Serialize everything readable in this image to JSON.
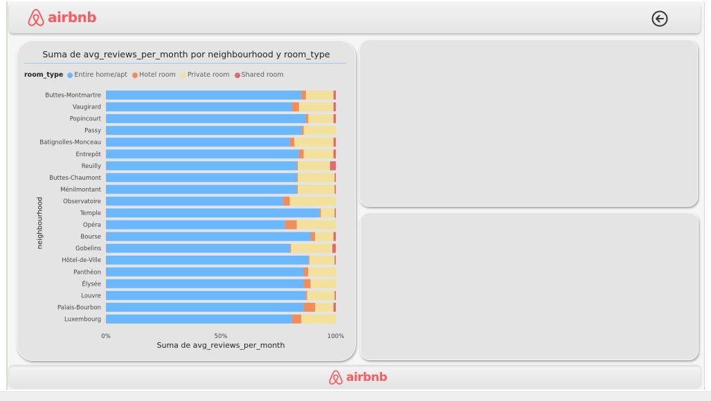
{
  "header": {
    "brand": "airbnb",
    "back_icon": "circle-arrow-left-icon"
  },
  "footer": {
    "brand": "airbnb"
  },
  "colors": {
    "brand": "#ff5a5f",
    "entire": "#6cb8ff",
    "hotel": "#f08e5b",
    "private": "#f2e09b",
    "shared": "#dd6b6f"
  },
  "chart_data": {
    "type": "bar",
    "orientation": "horizontal",
    "stacked": "100%",
    "title": "Suma de avg_reviews_per_month por neighbourhood y room_type",
    "xlabel": "Suma de avg_reviews_per_month",
    "ylabel": "neighbourhood",
    "legend_title": "room_type",
    "legend_position": "top-left",
    "x_ticks": [
      "0%",
      "50%",
      "100%"
    ],
    "xlim": [
      0,
      100
    ],
    "categories": [
      "Buttes-Montmartre",
      "Vaugirard",
      "Popincourt",
      "Passy",
      "Batignolles-Monceau",
      "Entrepôt",
      "Reuilly",
      "Buttes-Chaumont",
      "Ménilmontant",
      "Observatoire",
      "Temple",
      "Opéra",
      "Bourse",
      "Gobelins",
      "Hôtel-de-Ville",
      "Panthéon",
      "Élysée",
      "Louvre",
      "Palais-Bourbon",
      "Luxembourg"
    ],
    "series": [
      {
        "name": "Entire home/apt",
        "values": [
          85,
          81,
          87,
          85,
          80,
          84,
          83,
          83,
          83,
          77,
          93,
          78,
          89,
          80,
          88,
          86,
          86,
          87,
          86,
          81
        ]
      },
      {
        "name": "Hotel room",
        "values": [
          2,
          3,
          1,
          1,
          2,
          2,
          0.5,
          0.5,
          0.5,
          3,
          0.5,
          5,
          2,
          0.5,
          0.5,
          2,
          3,
          0.5,
          5,
          4
        ]
      },
      {
        "name": "Private room",
        "values": [
          12,
          15,
          11,
          14,
          17,
          13,
          14,
          16,
          16,
          20,
          6,
          17,
          8,
          18,
          11,
          12,
          11,
          12,
          8,
          15
        ]
      },
      {
        "name": "Shared room",
        "values": [
          1,
          1,
          1,
          0,
          1,
          1,
          2.5,
          0.5,
          0.5,
          0,
          0.5,
          0,
          1,
          1.5,
          0.5,
          0,
          0,
          0.5,
          1,
          0
        ]
      }
    ]
  }
}
